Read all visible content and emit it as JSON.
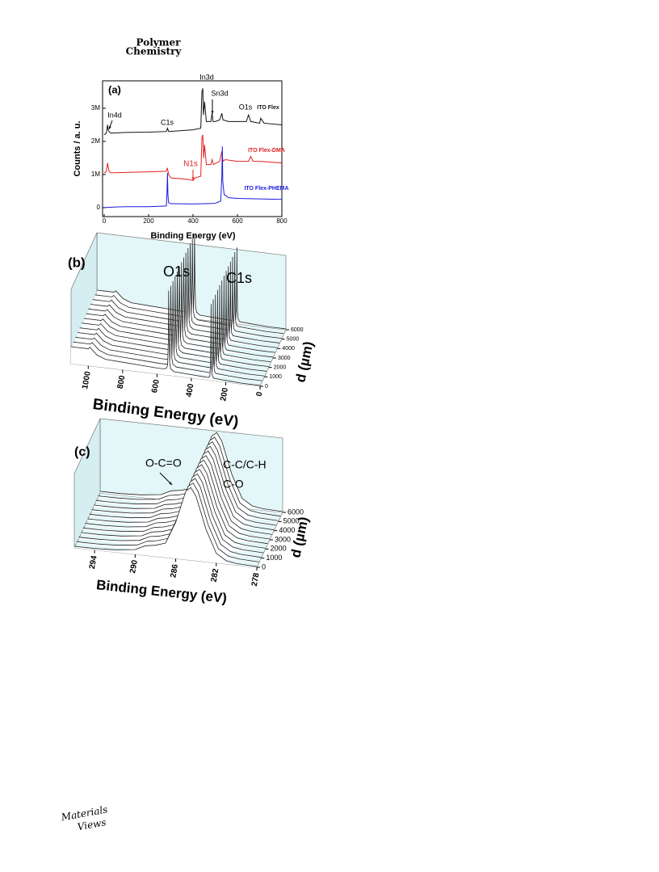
{
  "header": {
    "journal": [
      "Polymer",
      "Chemistry"
    ]
  },
  "chart_data": [
    {
      "type": "line",
      "xlabel": "Binding Energy (eV)",
      "ylabel": "Counts / a. u.",
      "xlim": [
        0,
        800
      ],
      "xticks": [
        0,
        200,
        400,
        600,
        800
      ],
      "ylim": [
        -270000,
        3830000
      ],
      "yticks": [
        0,
        {
          "value": 1000000,
          "label": "1M"
        },
        {
          "value": 2000000,
          "label": "2M"
        },
        {
          "value": 3000000,
          "label": "3M"
        }
      ],
      "annotations": [
        "(a)",
        "In3d",
        "Sn3d",
        "O1s",
        "C1s",
        "In4d",
        "N1s"
      ],
      "series": [
        {
          "name": "ITO Flex",
          "color": "#111111",
          "x": [
            0,
            10,
            15,
            18,
            22,
            30,
            100,
            200,
            280,
            285,
            290,
            400,
            435,
            440,
            444,
            447,
            452,
            460,
            480,
            486,
            490,
            500,
            520,
            530,
            535,
            560,
            640,
            650,
            660,
            700,
            705,
            720,
            800
          ],
          "values": [
            2200000,
            2250000,
            2500000,
            2350000,
            2300000,
            2250000,
            2270000,
            2280000,
            2300000,
            2400000,
            2300000,
            2350000,
            2400000,
            3500000,
            3600000,
            2800000,
            3200000,
            2600000,
            2600000,
            2850000,
            2600000,
            2600000,
            2650000,
            2850000,
            2650000,
            2600000,
            2600000,
            2800000,
            2600000,
            2550000,
            2700000,
            2550000,
            2500000
          ]
        },
        {
          "name": "ITO Flex-DMA",
          "color": "#e02020",
          "x": [
            0,
            10,
            15,
            22,
            30,
            200,
            280,
            285,
            290,
            300,
            380,
            400,
            410,
            435,
            440,
            444,
            448,
            452,
            460,
            480,
            486,
            492,
            520,
            530,
            535,
            545,
            600,
            650,
            660,
            670,
            700,
            800
          ],
          "values": [
            1050000,
            1100000,
            1350000,
            1100000,
            1050000,
            1080000,
            1100000,
            1200000,
            1000000,
            900000,
            850000,
            820000,
            900000,
            950000,
            2100000,
            2200000,
            1500000,
            1900000,
            1300000,
            1300000,
            1450000,
            1300000,
            1400000,
            1700000,
            1400000,
            1450000,
            1400000,
            1400000,
            1550000,
            1400000,
            1400000,
            1350000
          ]
        },
        {
          "name": "ITO Flex-PHEMA",
          "color": "#1a1adc",
          "x": [
            0,
            50,
            100,
            200,
            280,
            283,
            285,
            287,
            290,
            300,
            400,
            500,
            525,
            530,
            532,
            534,
            540,
            560,
            600,
            800
          ],
          "values": [
            0,
            20000,
            30000,
            30000,
            50000,
            500000,
            1050000,
            400000,
            150000,
            120000,
            110000,
            130000,
            200000,
            1000000,
            1850000,
            800000,
            400000,
            300000,
            280000,
            250000
          ]
        }
      ]
    },
    {
      "type": "waterfall",
      "xlabel": "Binding Energy (eV)",
      "zlabel": "d (µm)",
      "xlim": [
        1100,
        0
      ],
      "xticks": [
        1000,
        800,
        600,
        400,
        200,
        0
      ],
      "zlim": [
        0,
        6000
      ],
      "zticks": [
        0,
        1000,
        2000,
        3000,
        4000,
        5000,
        6000
      ],
      "z": [
        0,
        500,
        1000,
        1500,
        2000,
        2500,
        3000,
        3500,
        4000,
        4500,
        5000,
        5500,
        6000
      ],
      "annotations": [
        "(b)",
        "O1s",
        "C1s"
      ],
      "x": [
        1100,
        1000,
        990,
        950,
        900,
        800,
        700,
        600,
        560,
        545,
        538,
        534,
        532,
        530,
        526,
        520,
        500,
        400,
        300,
        292,
        288,
        286,
        285,
        284,
        282,
        278,
        270,
        200,
        100,
        0
      ],
      "values": [
        20,
        20,
        22,
        14,
        10,
        9,
        8,
        7,
        7,
        8,
        12,
        40,
        100,
        60,
        15,
        8,
        5,
        4,
        3,
        5,
        20,
        60,
        90,
        50,
        15,
        6,
        3,
        2,
        1,
        1
      ]
    },
    {
      "type": "waterfall",
      "xlabel": "Binding Energy (eV)",
      "zlabel": "d (µm)",
      "xlim": [
        296,
        278
      ],
      "xticks": [
        294,
        290,
        286,
        282,
        278
      ],
      "zlim": [
        0,
        6000
      ],
      "zticks": [
        0,
        1000,
        2000,
        3000,
        4000,
        5000,
        6000
      ],
      "z": [
        0,
        500,
        1000,
        1500,
        2000,
        2500,
        3000,
        3500,
        4000,
        4500,
        5000,
        5500,
        6000
      ],
      "annotations": [
        "(c)",
        "O-C=O",
        "C-C/C-H",
        "C-O"
      ],
      "x": [
        296,
        294,
        292,
        290,
        289,
        288,
        287,
        286,
        285,
        284.5,
        284,
        283,
        282,
        281,
        280,
        278
      ],
      "values": [
        2,
        2,
        3,
        6,
        12,
        14,
        18,
        45,
        85,
        90,
        80,
        40,
        12,
        4,
        2,
        1
      ]
    }
  ],
  "footer": {
    "logo": [
      "Materials",
      "Views"
    ]
  }
}
